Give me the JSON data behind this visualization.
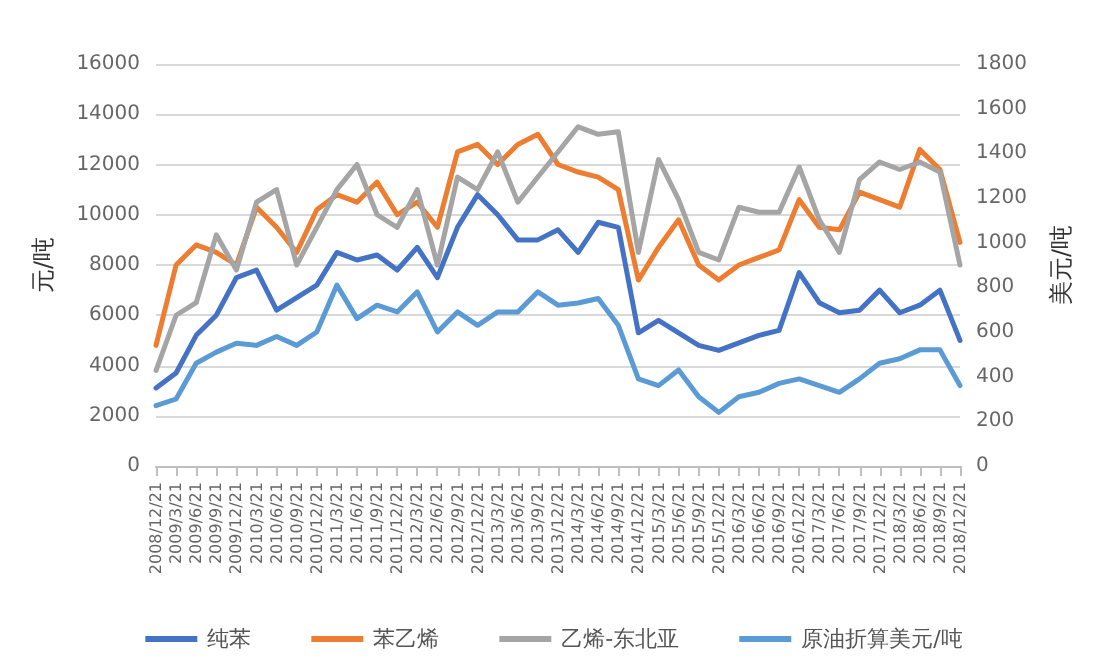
{
  "chart_data": {
    "type": "line",
    "ylabel": "元/吨",
    "y2label": "美元/吨",
    "categories": [
      "2008/12/21",
      "2009/3/21",
      "2009/6/21",
      "2009/9/21",
      "2009/12/21",
      "2010/3/21",
      "2010/6/21",
      "2010/9/21",
      "2010/12/21",
      "2011/3/21",
      "2011/6/21",
      "2011/9/21",
      "2011/12/21",
      "2012/3/21",
      "2012/6/21",
      "2012/9/21",
      "2012/12/21",
      "2013/3/21",
      "2013/6/21",
      "2013/9/21",
      "2013/12/21",
      "2014/3/21",
      "2014/6/21",
      "2014/9/21",
      "2014/12/21",
      "2015/3/21",
      "2015/6/21",
      "2015/9/21",
      "2015/12/21",
      "2016/3/21",
      "2016/6/21",
      "2016/9/21",
      "2016/12/21",
      "2017/3/21",
      "2017/6/21",
      "2017/9/21",
      "2017/12/21",
      "2018/3/21",
      "2018/6/21",
      "2018/9/21",
      "2018/12/21"
    ],
    "series": [
      {
        "name": "纯苯",
        "color": "#4472c4",
        "values": [
          3100,
          3700,
          5200,
          6000,
          7500,
          7800,
          6200,
          6700,
          7200,
          8500,
          8200,
          8400,
          7800,
          8700,
          7500,
          9500,
          10800,
          10000,
          9000,
          9000,
          9400,
          8500,
          9700,
          9500,
          5300,
          5800,
          5300,
          4800,
          4600,
          4900,
          5200,
          5400,
          7700,
          6500,
          6100,
          6200,
          7000,
          6100,
          6400,
          7000,
          5000
        ]
      },
      {
        "name": "苯乙烯",
        "color": "#ed7d31",
        "values": [
          4800,
          8000,
          8800,
          8500,
          8000,
          10300,
          9500,
          8500,
          10200,
          10800,
          10500,
          11300,
          10000,
          10500,
          9500,
          12500,
          12800,
          12000,
          12800,
          13200,
          12000,
          11700,
          11500,
          11000,
          7400,
          8700,
          9800,
          8000,
          7400,
          8000,
          8300,
          8600,
          10600,
          9500,
          9400,
          10900,
          10600,
          10300,
          12600,
          11800,
          8900
        ]
      },
      {
        "name": "乙烯-东北亚",
        "color": "#a5a5a5",
        "values": [
          3800,
          6000,
          6500,
          9200,
          7800,
          10500,
          11000,
          8000,
          9500,
          11000,
          12000,
          10000,
          9500,
          11000,
          8000,
          11500,
          11000,
          12500,
          10500,
          11500,
          12500,
          13500,
          13200,
          13300,
          8500,
          12200,
          10600,
          8500,
          8200,
          10300,
          10100,
          10100,
          11900,
          9800,
          8500,
          11400,
          12100,
          11800,
          12100,
          11700,
          8000
        ]
      },
      {
        "name": "原油折算美元/吨",
        "color": "#5b9bd5",
        "axis": "y2",
        "values": [
          270,
          300,
          460,
          510,
          550,
          540,
          580,
          540,
          600,
          810,
          660,
          720,
          690,
          780,
          600,
          690,
          630,
          690,
          690,
          780,
          720,
          730,
          750,
          630,
          390,
          360,
          430,
          310,
          240,
          310,
          330,
          370,
          390,
          360,
          330,
          390,
          460,
          480,
          520,
          520,
          360
        ]
      }
    ],
    "ylim": [
      0,
      16000
    ],
    "yticks": [
      0,
      2000,
      4000,
      6000,
      8000,
      10000,
      12000,
      14000,
      16000
    ],
    "y2lim": [
      0,
      1800
    ],
    "y2ticks": [
      0,
      200,
      400,
      600,
      800,
      1000,
      1200,
      1400,
      1600,
      1800
    ],
    "grid": "y",
    "legend": "bottom",
    "marker": "none",
    "line_style": "solid"
  }
}
